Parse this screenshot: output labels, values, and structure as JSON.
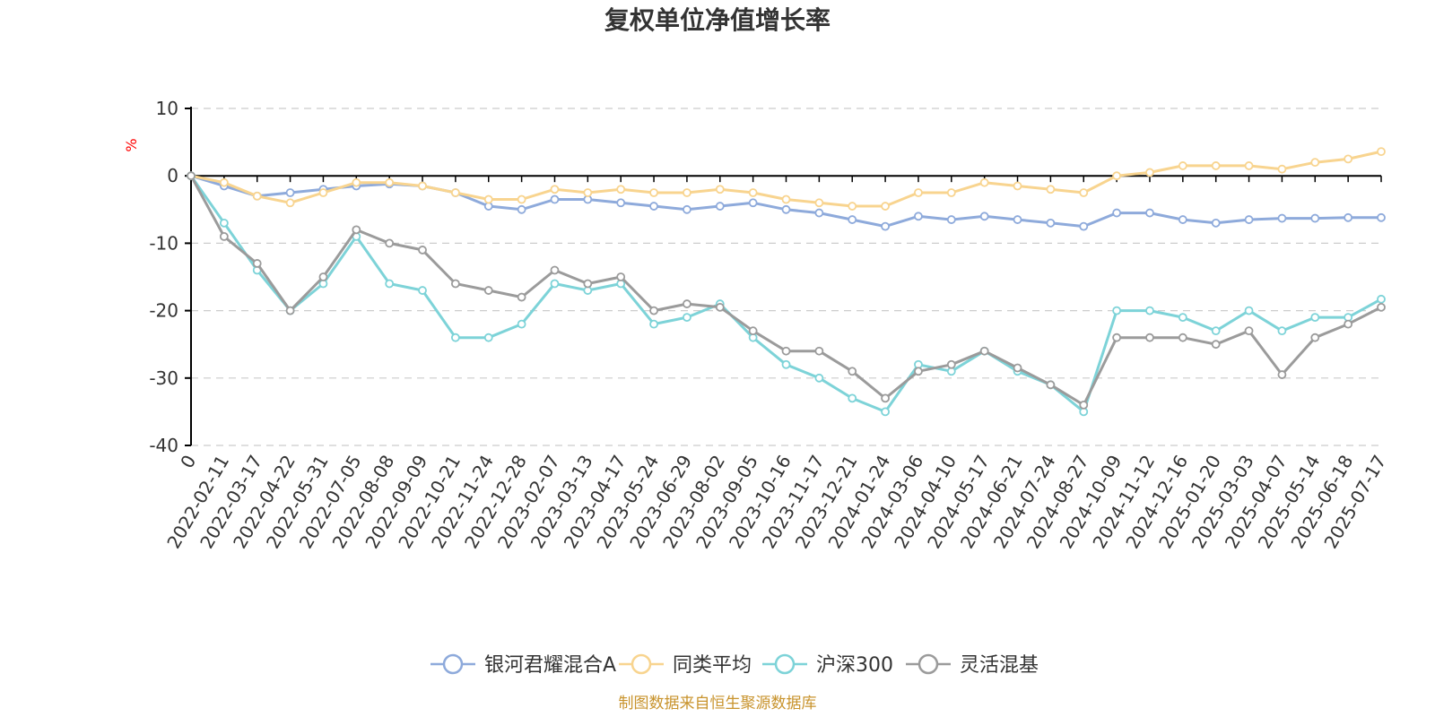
{
  "chart_data": {
    "type": "line",
    "title": "复权单位净值增长率",
    "unit": "%",
    "source": "制图数据来自恒生聚源数据库",
    "ylim": [
      -40,
      10
    ],
    "y_ticks": [
      10,
      0,
      -10,
      -20,
      -30,
      -40
    ],
    "x_ticks": [
      "0",
      "2022-02-11",
      "2022-03-17",
      "2022-04-22",
      "2022-05-31",
      "2022-07-05",
      "2022-08-08",
      "2022-09-09",
      "2022-10-21",
      "2022-11-24",
      "2022-12-28",
      "2023-02-07",
      "2023-03-13",
      "2023-04-17",
      "2023-05-24",
      "2023-06-29",
      "2023-08-02",
      "2023-09-05",
      "2023-10-16",
      "2023-11-17",
      "2023-12-21",
      "2024-01-24",
      "2024-03-06",
      "2024-04-10",
      "2024-05-17",
      "2024-06-21",
      "2024-07-24",
      "2024-08-27",
      "2024-10-09",
      "2024-11-12",
      "2024-12-16",
      "2025-01-20",
      "2025-03-03",
      "2025-04-07",
      "2025-05-14",
      "2025-06-18",
      "2025-07-17"
    ],
    "grid": true,
    "legend_position": "bottom",
    "series": [
      {
        "name": "银河君耀混合A",
        "color": "#8eaadb",
        "values": [
          0,
          -1.5,
          -3,
          -2.5,
          -2,
          -1.5,
          -1.2,
          -1.5,
          -2.5,
          -4.5,
          -5,
          -3.5,
          -3.5,
          -4,
          -4.5,
          -5,
          -4.5,
          -4,
          -5,
          -5.5,
          -6.5,
          -7.5,
          -6,
          -6.5,
          -6,
          -6.5,
          -7,
          -7.5,
          -5.5,
          -5.5,
          -6.5,
          -7,
          -6.5,
          -6.3,
          -6.3,
          -6.2,
          -6.2
        ]
      },
      {
        "name": "同类平均",
        "color": "#f8d48f",
        "values": [
          0,
          -1,
          -3,
          -4,
          -2.5,
          -1,
          -1,
          -1.5,
          -2.5,
          -3.5,
          -3.5,
          -2,
          -2.5,
          -2,
          -2.5,
          -2.5,
          -2,
          -2.5,
          -3.5,
          -4,
          -4.5,
          -4.5,
          -2.5,
          -2.5,
          -1,
          -1.5,
          -2,
          -2.5,
          0,
          0.5,
          1.5,
          1.5,
          1.5,
          1,
          2,
          2.5,
          3.6
        ]
      },
      {
        "name": "沪深300",
        "color": "#7dd3d8",
        "values": [
          0,
          -7,
          -14,
          -20,
          -16,
          -9,
          -16,
          -17,
          -24,
          -24,
          -22,
          -16,
          -17,
          -16,
          -22,
          -21,
          -19,
          -24,
          -28,
          -30,
          -33,
          -35,
          -28,
          -29,
          -26,
          -29,
          -31,
          -35,
          -20,
          -20,
          -21,
          -23,
          -20,
          -23,
          -21,
          -21,
          -18.3
        ]
      },
      {
        "name": "灵活混基",
        "color": "#9b9b9b",
        "values": [
          0,
          -9,
          -13,
          -20,
          -15,
          -8,
          -10,
          -11,
          -16,
          -17,
          -18,
          -14,
          -16,
          -15,
          -20,
          -19,
          -19.5,
          -23,
          -26,
          -26,
          -29,
          -33,
          -29,
          -28,
          -26,
          -28.5,
          -31,
          -34,
          -24,
          -24,
          -24,
          -25,
          -23,
          -29.5,
          -24,
          -22,
          -19.5
        ]
      }
    ]
  }
}
